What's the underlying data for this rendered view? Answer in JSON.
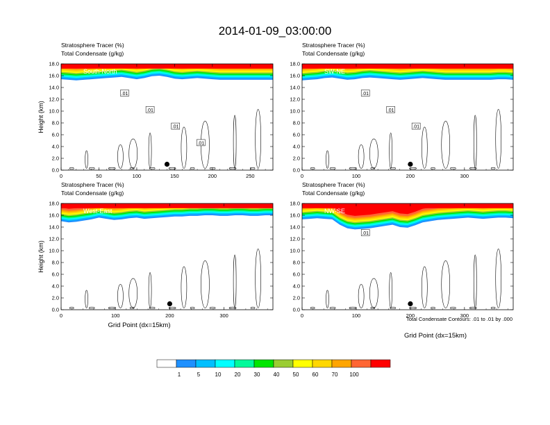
{
  "figure": {
    "title": "2014-01-09_03:00:00",
    "contour_info": "Total Condensate Contours: .01 to .01 by .000"
  },
  "colorbar": {
    "colors": [
      "#ffffff",
      "#1e90ff",
      "#00bfff",
      "#00ffff",
      "#00fa9a",
      "#00e600",
      "#9acd32",
      "#ffff00",
      "#ffd700",
      "#ffa500",
      "#ff6633",
      "#ff0000"
    ],
    "labels": [
      "1",
      "5",
      "10",
      "20",
      "30",
      "40",
      "50",
      "60",
      "70",
      "100"
    ]
  },
  "chart_data": [
    {
      "type": "heatmap",
      "label_line1": "Stratosphere Tracer   (%)",
      "label_line2": "Total Condensate   (g/kg)",
      "section": "South-North",
      "ylabel": "Height (km)",
      "xlabel": "",
      "xlim": [
        0,
        280
      ],
      "xticks": [
        "0",
        "50",
        "100",
        "150",
        "200",
        "250"
      ],
      "ylim": [
        0,
        18
      ],
      "yticks": [
        "0.0",
        "2.0",
        "4.0",
        "6.0",
        "8.0",
        "10.0",
        "12.0",
        "14.0",
        "16.0",
        "18.0"
      ],
      "marker": {
        "x": 140,
        "y": 1.0
      },
      "contour_labels": [
        ".01",
        ".01",
        ".01",
        ".01"
      ],
      "tracer_base_km": [
        15.4,
        15.3,
        15.2,
        15.3,
        15.4,
        15.5,
        15.6,
        15.7,
        15.8,
        15.6,
        15.4,
        15.6,
        15.9,
        16.0,
        15.8,
        15.5,
        15.4,
        15.5,
        15.6,
        15.5,
        15.4,
        15.3,
        15.3,
        15.3,
        15.3,
        15.3,
        15.3,
        15.3,
        15.3
      ]
    },
    {
      "type": "heatmap",
      "label_line1": "Stratosphere Tracer   (%)",
      "label_line2": "Total Condensate   (g/kg)",
      "section": "SW-NE",
      "ylabel": "",
      "xlabel": "",
      "xlim": [
        0,
        390
      ],
      "xticks": [
        "0",
        "100",
        "200",
        "300"
      ],
      "ylim": [
        0,
        18
      ],
      "yticks": [
        "0.0",
        "2.0",
        "4.0",
        "6.0",
        "8.0",
        "10.0",
        "12.0",
        "14.0",
        "16.0",
        "18.0"
      ],
      "marker": {
        "x": 200,
        "y": 1.0
      },
      "contour_labels": [
        ".01",
        ".01",
        ".01"
      ],
      "tracer_base_km": [
        15.2,
        15.3,
        15.4,
        15.6,
        15.7,
        15.5,
        15.3,
        15.4,
        15.6,
        15.7,
        15.6,
        15.5,
        15.4,
        15.3,
        15.4,
        15.5,
        15.6,
        15.5,
        15.4,
        15.3,
        15.3,
        15.3,
        15.3,
        15.3,
        15.3,
        15.3,
        15.4,
        15.4,
        15.3
      ]
    },
    {
      "type": "heatmap",
      "label_line1": "Stratosphere Tracer   (%)",
      "label_line2": "Total Condensate   (g/kg)",
      "section": "West-East",
      "ylabel": "Height (km)",
      "xlabel": "Grid Point (dx=15km)",
      "xlim": [
        0,
        390
      ],
      "xticks": [
        "0",
        "100",
        "200",
        "300"
      ],
      "ylim": [
        0,
        18
      ],
      "yticks": [
        "0.0",
        "2.0",
        "4.0",
        "6.0",
        "8.0",
        "10.0",
        "12.0",
        "14.0",
        "16.0",
        "18.0"
      ],
      "marker": {
        "x": 200,
        "y": 1.0
      },
      "contour_labels": [],
      "tracer_base_km": [
        15.0,
        14.8,
        14.9,
        15.1,
        15.3,
        15.6,
        15.4,
        15.2,
        15.3,
        15.5,
        15.6,
        15.4,
        15.5,
        15.6,
        15.7,
        15.8,
        15.8,
        15.9,
        15.9,
        16.0,
        16.0,
        15.9,
        15.9,
        16.0,
        16.0,
        15.9,
        15.9,
        16.0,
        16.0
      ]
    },
    {
      "type": "heatmap",
      "label_line1": "Stratosphere Tracer   (%)",
      "label_line2": "Total Condensate   (g/kg)",
      "section": "NW-SE",
      "ylabel": "",
      "xlabel": "Grid Point (dx=15km)",
      "xlim": [
        0,
        390
      ],
      "xticks": [
        "0",
        "100",
        "200",
        "300"
      ],
      "ylim": [
        0,
        18
      ],
      "yticks": [
        "0.0",
        "2.0",
        "4.0",
        "6.0",
        "8.0",
        "10.0",
        "12.0",
        "14.0",
        "16.0",
        "18.0"
      ],
      "marker": {
        "x": 200,
        "y": 1.0
      },
      "contour_labels": [
        ".01"
      ],
      "tracer_base_km": [
        15.3,
        15.4,
        15.5,
        15.4,
        15.3,
        14.4,
        13.8,
        13.6,
        13.7,
        13.8,
        14.0,
        14.2,
        14.4,
        14.0,
        13.9,
        14.3,
        14.8,
        15.0,
        15.2,
        15.3,
        15.4,
        15.5,
        15.6,
        15.5,
        15.4,
        15.5,
        15.6,
        15.6,
        15.5
      ]
    }
  ]
}
